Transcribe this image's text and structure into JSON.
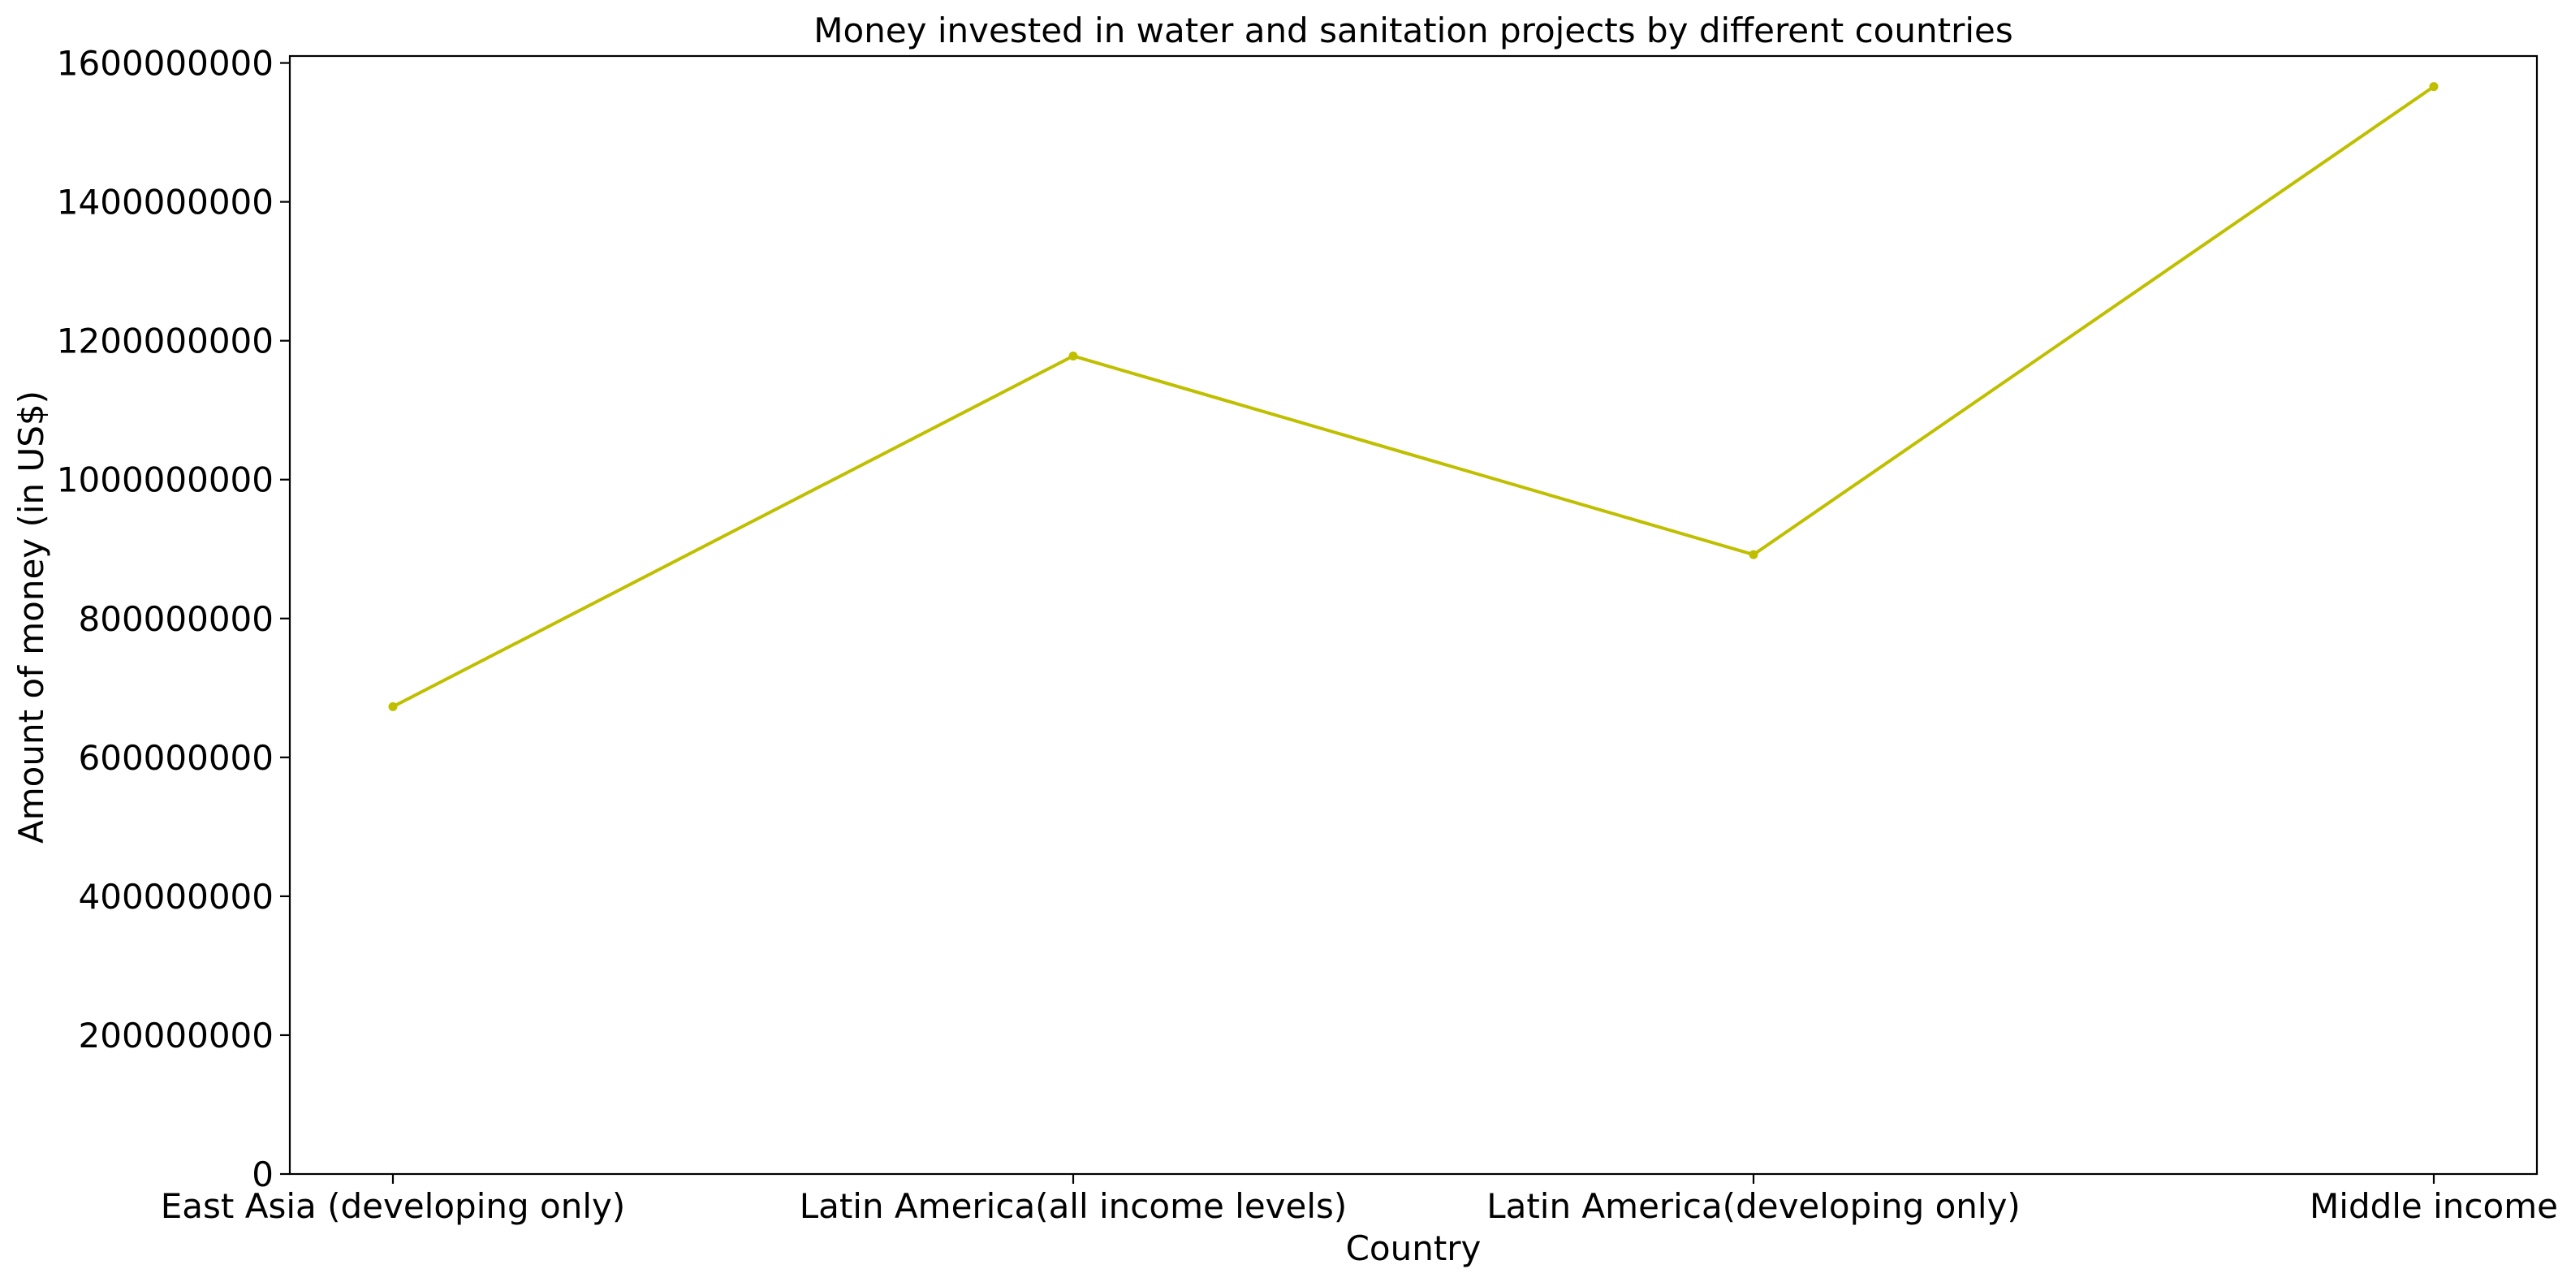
{
  "chart_data": {
    "type": "line",
    "title": "Money invested in water and sanitation projects by different countries",
    "xlabel": "Country",
    "ylabel": "Amount of money (in US$)",
    "categories": [
      "East Asia (developing only)",
      "Latin America(all income levels)",
      "Latin America(developing only)",
      "Middle income"
    ],
    "series": [
      {
        "values": [
          673000000,
          1178000000,
          892000000,
          1566000000
        ],
        "color": "#bfbf00",
        "marker": "circle"
      }
    ],
    "ylim": [
      0,
      1610000000
    ],
    "yticks": [
      0,
      200000000,
      400000000,
      600000000,
      800000000,
      1000000000,
      1200000000,
      1400000000,
      1600000000
    ],
    "ytick_labels": [
      "0",
      "200000000",
      "400000000",
      "600000000",
      "800000000",
      "1000000000",
      "1200000000",
      "1400000000",
      "1600000000"
    ],
    "grid": false,
    "legend": "none"
  }
}
